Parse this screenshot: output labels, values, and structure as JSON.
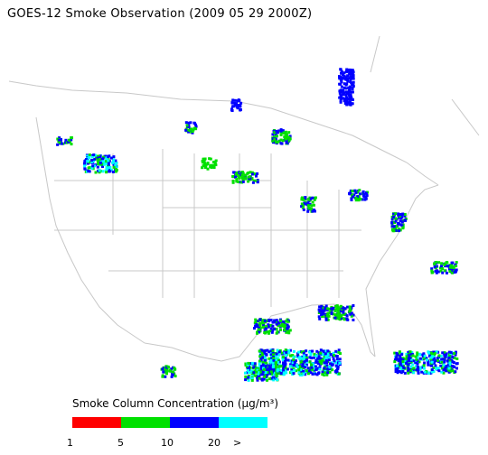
{
  "title": "GOES-12 Smoke Observation (2009 05 29  2000Z)",
  "legend": {
    "title": "Smoke Column Concentration (μg/m³)",
    "bins": [
      {
        "label": "1",
        "color": "#ff0000"
      },
      {
        "label": "5",
        "color": "#00e000"
      },
      {
        "label": "10",
        "color": "#0000ff"
      },
      {
        "label": "20",
        "color": "#00ffff"
      }
    ],
    "overflow_label": ">"
  },
  "map": {
    "region": "Continental United States",
    "boundary_color": "#c8c8c8"
  }
}
